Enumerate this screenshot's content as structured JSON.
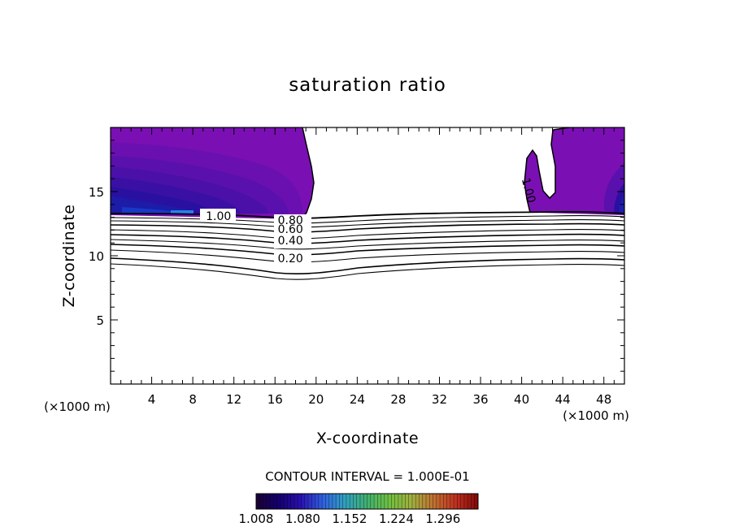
{
  "chart_data": {
    "type": "contour",
    "title": "saturation ratio",
    "xlabel": "X-coordinate",
    "ylabel": "Z-coordinate",
    "x_unit": "(×1000 m)",
    "z_unit": "(×1000 m)",
    "xlim": [
      0,
      50
    ],
    "ylim": [
      0,
      20
    ],
    "x_ticks": [
      4,
      8,
      12,
      16,
      20,
      24,
      28,
      32,
      36,
      40,
      44,
      48
    ],
    "y_ticks": [
      5,
      10,
      15
    ],
    "contour_interval_text": "CONTOUR INTERVAL = 1.000E-01",
    "contour_labels": [
      {
        "text": "1.00",
        "x": 10.5,
        "z": 13.1
      },
      {
        "text": "0.80",
        "x": 17.5,
        "z": 12.8
      },
      {
        "text": "0.60",
        "x": 17.5,
        "z": 12.1
      },
      {
        "text": "0.40",
        "x": 17.5,
        "z": 11.2
      },
      {
        "text": "0.20",
        "x": 17.5,
        "z": 9.8
      },
      {
        "text": "1.00",
        "x": 40.7,
        "z": 15.1,
        "rotated": true
      }
    ],
    "colorbar": {
      "tick_labels": [
        "1.008",
        "1.080",
        "1.152",
        "1.224",
        "1.296"
      ],
      "vmin": 1.008,
      "vmax": 1.35,
      "colors": [
        "#1a0033",
        "#14006e",
        "#2a10b0",
        "#3060e0",
        "#30a0c0",
        "#40b070",
        "#70c040",
        "#a0b040",
        "#c07030",
        "#c03020",
        "#800808"
      ]
    },
    "supersaturated_regions": [
      {
        "name": "left",
        "x_range": [
          0,
          19.2
        ],
        "z_range": [
          13.1,
          19.9
        ]
      },
      {
        "name": "right",
        "x_range": [
          40.2,
          50
        ],
        "z_range": [
          13.1,
          19.9
        ]
      }
    ]
  }
}
